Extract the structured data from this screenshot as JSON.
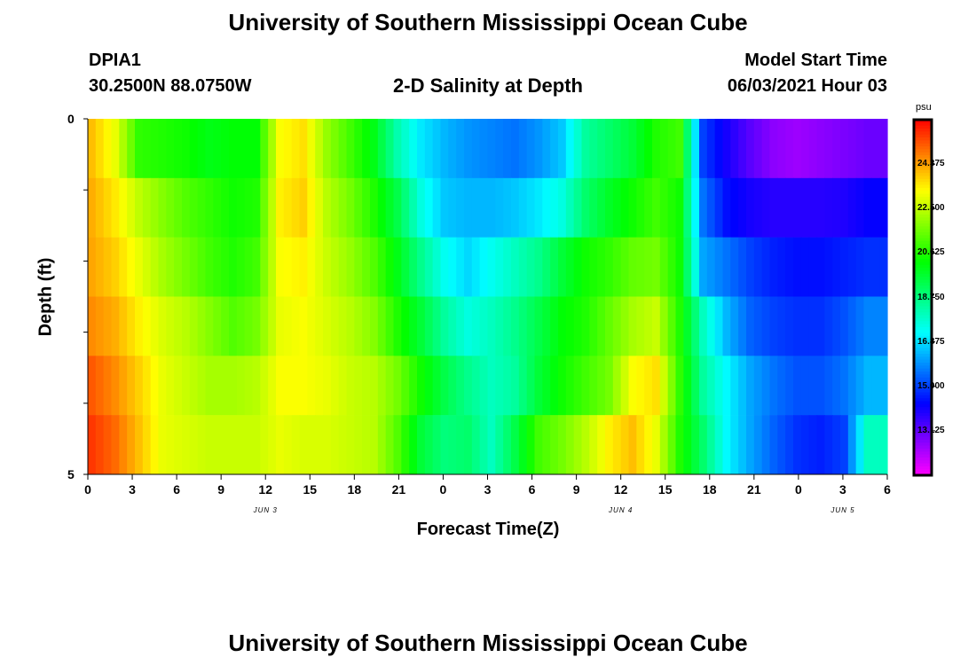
{
  "header": {
    "title_top": "University of Southern Mississippi Ocean Cube",
    "title_bottom": "University of Southern Mississippi Ocean Cube",
    "station_id": "DPIA1",
    "station_coords": "30.2500N  88.0750W",
    "plot_title": "2-D Salinity at Depth",
    "model_start_label": "Model Start Time",
    "model_start_value": "06/03/2021 Hour 03"
  },
  "chart_data": {
    "type": "heatmap",
    "title": "2-D Salinity at Depth",
    "xlabel": "Forecast Time(Z)",
    "ylabel": "Depth (ft)",
    "x_hours_since_model_start": [
      0,
      3,
      6,
      9,
      12,
      15,
      18,
      21,
      24,
      27,
      30,
      33,
      36,
      39,
      42,
      45,
      48,
      51,
      54
    ],
    "x_tick_labels": [
      "0",
      "3",
      "6",
      "9",
      "12",
      "15",
      "18",
      "21",
      "0",
      "3",
      "6",
      "9",
      "12",
      "15",
      "18",
      "21",
      "0",
      "3",
      "6"
    ],
    "x_day_labels": [
      {
        "label": "JUN 3",
        "at_tick": 4
      },
      {
        "label": "JUN 4",
        "at_tick": 12
      },
      {
        "label": "JUN 5",
        "at_tick": 17
      }
    ],
    "y_tick_labels": [
      "0",
      "5"
    ],
    "y_range": [
      0,
      5
    ],
    "depth_layers": 6,
    "colorbar": {
      "unit": "psu",
      "range": [
        11.25,
        26.25
      ],
      "tick_values": [
        13.125,
        15.0,
        16.875,
        18.75,
        20.625,
        22.5,
        24.375
      ],
      "tick_labels": [
        "13.125",
        "15.000",
        "16.875",
        "18.750",
        "20.625",
        "22.500",
        "24.375"
      ]
    },
    "salinity_rows": [
      [
        24.0,
        23.0,
        20.8,
        20.6,
        20.4,
        20.0,
        20.2,
        20.2,
        23.2,
        23.6,
        22.0,
        21.0,
        20.0,
        18.2,
        17.0,
        16.4,
        16.0,
        15.8,
        15.6,
        16.0,
        16.6,
        18.4,
        19.0,
        19.6,
        20.6,
        21.0,
        15.0,
        14.0,
        13.2,
        12.6,
        12.4,
        12.6,
        12.8,
        13.0
      ],
      [
        24.2,
        23.5,
        22.5,
        21.8,
        21.2,
        20.8,
        20.4,
        20.6,
        23.4,
        23.8,
        22.4,
        21.6,
        20.6,
        19.4,
        17.6,
        16.6,
        16.4,
        16.4,
        16.6,
        17.0,
        17.6,
        19.0,
        19.8,
        20.4,
        21.0,
        20.4,
        15.6,
        14.4,
        14.0,
        13.8,
        13.8,
        13.8,
        13.9,
        14.2
      ],
      [
        24.3,
        23.8,
        23.0,
        22.2,
        21.6,
        21.0,
        20.6,
        21.0,
        23.2,
        23.4,
        22.6,
        22.0,
        21.2,
        20.0,
        18.6,
        17.4,
        16.8,
        17.4,
        18.0,
        18.6,
        19.6,
        20.4,
        20.8,
        21.4,
        21.6,
        20.4,
        16.2,
        15.6,
        15.0,
        14.6,
        14.4,
        14.4,
        14.6,
        14.8
      ],
      [
        24.6,
        24.2,
        23.4,
        22.8,
        22.4,
        21.8,
        21.2,
        21.6,
        23.0,
        23.2,
        22.8,
        22.4,
        21.8,
        20.6,
        19.6,
        18.4,
        17.6,
        18.0,
        18.6,
        19.4,
        20.2,
        20.6,
        21.4,
        22.2,
        22.6,
        20.6,
        18.0,
        16.4,
        15.4,
        15.0,
        14.8,
        14.8,
        15.2,
        15.8
      ],
      [
        25.2,
        24.6,
        23.8,
        23.0,
        22.6,
        22.2,
        22.2,
        22.4,
        23.2,
        23.2,
        23.0,
        22.6,
        22.4,
        21.6,
        20.4,
        19.4,
        18.6,
        18.0,
        18.4,
        19.6,
        20.4,
        21.0,
        21.6,
        23.2,
        23.6,
        20.8,
        18.4,
        17.2,
        16.2,
        15.6,
        15.2,
        15.2,
        15.6,
        16.4
      ],
      [
        25.6,
        25.0,
        24.0,
        23.0,
        22.8,
        22.6,
        22.6,
        22.6,
        23.0,
        22.8,
        22.8,
        22.6,
        22.4,
        21.2,
        19.6,
        18.8,
        19.0,
        18.0,
        19.4,
        21.0,
        21.6,
        22.4,
        23.4,
        24.0,
        23.0,
        20.6,
        19.0,
        17.2,
        16.2,
        15.4,
        14.8,
        14.6,
        15.0,
        18.0
      ]
    ]
  }
}
